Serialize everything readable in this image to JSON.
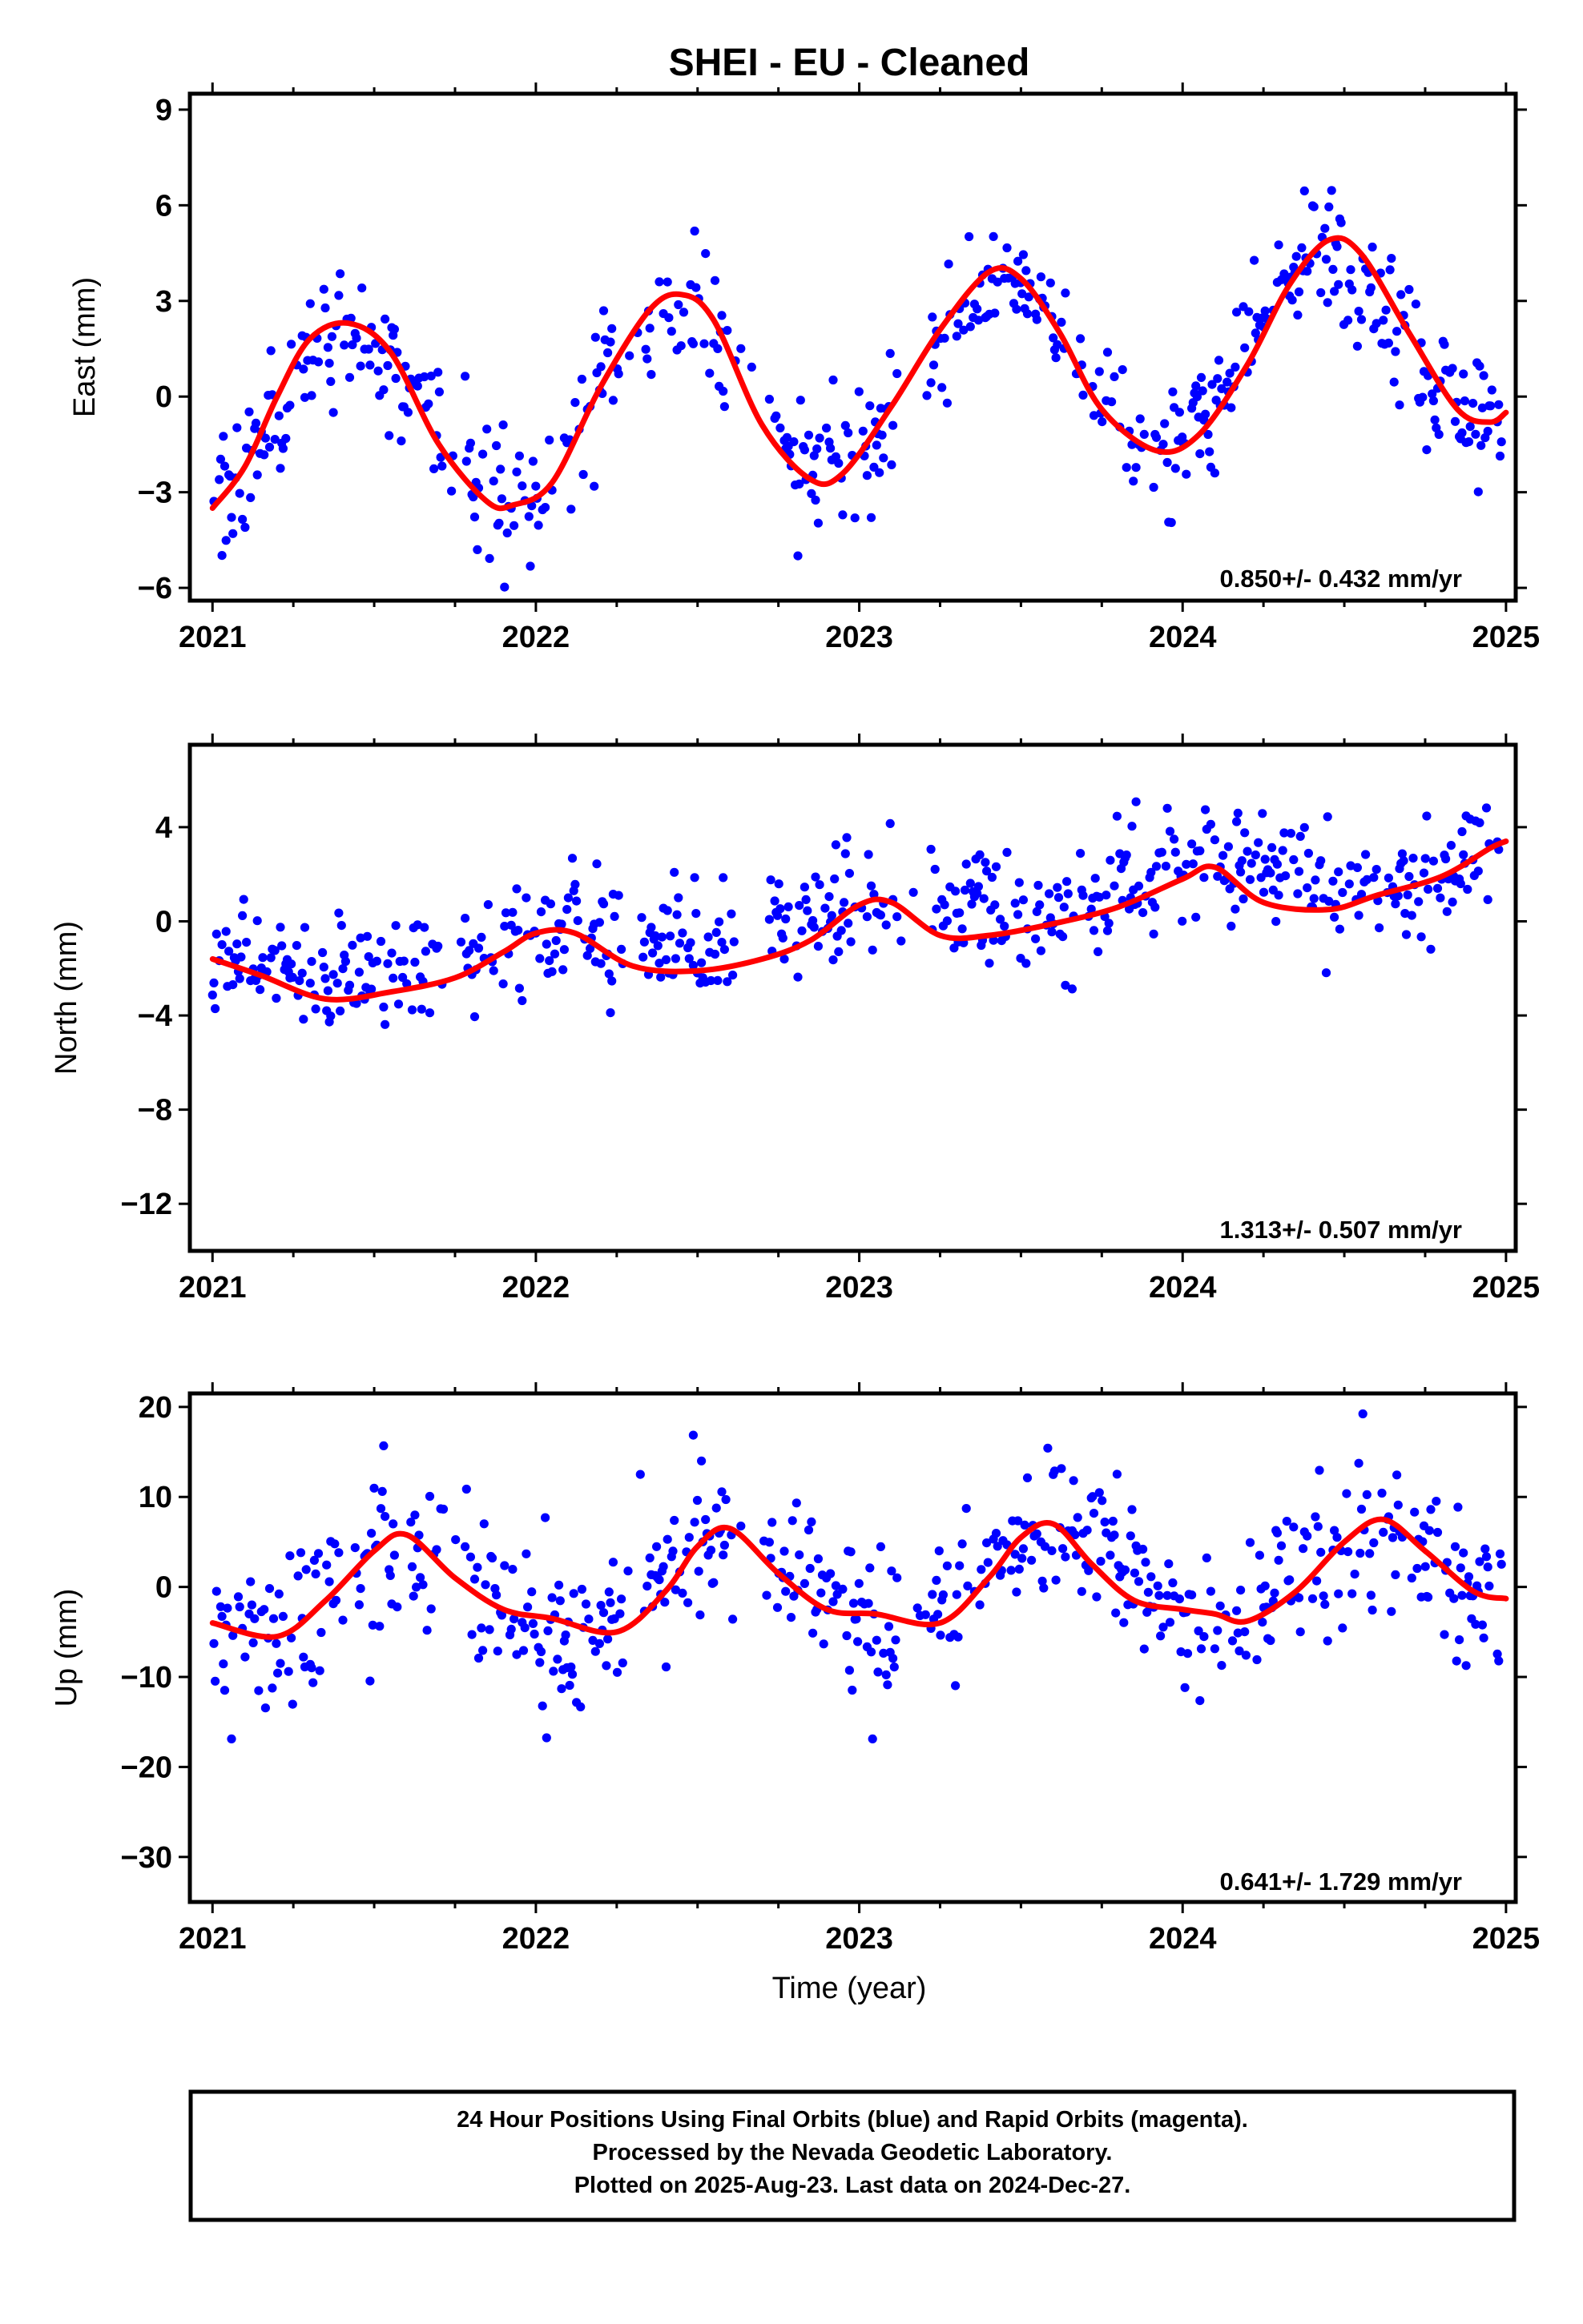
{
  "title": "SHEI  - EU - Cleaned",
  "xlabel": "Time (year)",
  "x_ticks": [
    2021,
    2022,
    2023,
    2024,
    2025
  ],
  "footer": {
    "line1": "24 Hour Positions Using Final Orbits (blue) and Rapid Orbits (magenta).",
    "line2": "Processed by the Nevada Geodetic Laboratory.",
    "line3": "Plotted on 2025-Aug-23. Last data on 2024-Dec-27."
  },
  "colors": {
    "points": "#0000ff",
    "fit": "#ff0000",
    "axis": "#000000"
  },
  "chart_data": [
    {
      "type": "scatter",
      "ylabel": "East (mm)",
      "xlim": [
        2020.93,
        2025.03
      ],
      "ylim": [
        -6.4,
        9.5
      ],
      "yticks": [
        -6,
        -3,
        0,
        3,
        6,
        9
      ],
      "rate": "0.850+/- 0.432 mm/yr",
      "fit": {
        "x": [
          2021.0,
          2021.1,
          2021.2,
          2021.3,
          2021.42,
          2021.55,
          2021.7,
          2021.85,
          2021.93,
          2022.05,
          2022.2,
          2022.35,
          2022.45,
          2022.55,
          2022.7,
          2022.85,
          2022.95,
          2023.1,
          2023.25,
          2023.4,
          2023.5,
          2023.62,
          2023.75,
          2023.92,
          2024.05,
          2024.2,
          2024.33,
          2024.45,
          2024.55,
          2024.7,
          2024.85,
          2024.95,
          2025.0
        ],
        "y": [
          -3.5,
          -2.2,
          0.0,
          1.8,
          2.3,
          1.4,
          -1.5,
          -3.3,
          -3.4,
          -2.7,
          0.3,
          2.7,
          3.2,
          2.4,
          -0.9,
          -2.6,
          -2.4,
          -0.3,
          2.1,
          3.9,
          3.7,
          2.0,
          -0.4,
          -1.7,
          -1.2,
          1.0,
          3.5,
          4.9,
          4.5,
          2.0,
          -0.4,
          -0.8,
          -0.5
        ]
      },
      "seasonal": {
        "amp": 2.75,
        "peak_phase": 0.43,
        "trend": 0.85,
        "intercept": -1.3,
        "noise": 1.05
      }
    },
    {
      "type": "scatter",
      "ylabel": "North (mm)",
      "xlim": [
        2020.93,
        2025.03
      ],
      "ylim": [
        -14.0,
        7.5
      ],
      "yticks": [
        -12,
        -8,
        -4,
        0,
        4
      ],
      "rate": "1.313+/- 0.507 mm/yr",
      "fit": {
        "x": [
          2021.0,
          2021.15,
          2021.35,
          2021.55,
          2021.75,
          2021.9,
          2022.0,
          2022.12,
          2022.3,
          2022.5,
          2022.7,
          2022.85,
          2023.0,
          2023.1,
          2023.25,
          2023.4,
          2023.6,
          2023.8,
          2024.0,
          2024.1,
          2024.25,
          2024.45,
          2024.6,
          2024.8,
          2024.95,
          2025.0
        ],
        "y": [
          -1.6,
          -2.3,
          -3.3,
          -3.0,
          -2.4,
          -1.3,
          -0.5,
          -0.5,
          -1.9,
          -2.1,
          -1.6,
          -0.8,
          0.7,
          0.8,
          -0.6,
          -0.6,
          -0.1,
          0.6,
          1.8,
          2.3,
          0.8,
          0.5,
          1.1,
          1.9,
          3.1,
          3.4
        ]
      },
      "seasonal": {
        "amp": 0.8,
        "peak_phase": 0.05,
        "trend": 1.313,
        "intercept": -2.4,
        "noise": 1.25
      }
    },
    {
      "type": "scatter",
      "ylabel": "Up (mm)",
      "xlim": [
        2020.93,
        2025.03
      ],
      "ylim": [
        -35.0,
        21.5
      ],
      "yticks": [
        -30,
        -20,
        -10,
        0,
        10,
        20
      ],
      "rate": "0.641+/- 1.729 mm/yr",
      "fit": {
        "x": [
          2021.0,
          2021.2,
          2021.35,
          2021.5,
          2021.6,
          2021.75,
          2021.9,
          2022.05,
          2022.25,
          2022.4,
          2022.5,
          2022.6,
          2022.75,
          2022.9,
          2023.05,
          2023.25,
          2023.4,
          2023.5,
          2023.6,
          2023.72,
          2023.85,
          2024.0,
          2024.1,
          2024.2,
          2024.35,
          2024.5,
          2024.62,
          2024.75,
          2024.9,
          2025.0
        ],
        "y": [
          -4.0,
          -5.5,
          -1.5,
          4.0,
          5.8,
          1.0,
          -2.5,
          -3.5,
          -5.0,
          -0.5,
          4.5,
          6.5,
          1.5,
          -2.5,
          -3.0,
          -4.0,
          1.0,
          5.5,
          7.0,
          2.5,
          -1.5,
          -2.5,
          -3.0,
          -3.8,
          -0.5,
          5.0,
          7.5,
          4.0,
          -0.5,
          -1.3
        ]
      },
      "seasonal": {
        "amp": 5.5,
        "peak_phase": 0.6,
        "trend": 0.641,
        "intercept": -1.0,
        "noise": 4.6
      }
    }
  ]
}
